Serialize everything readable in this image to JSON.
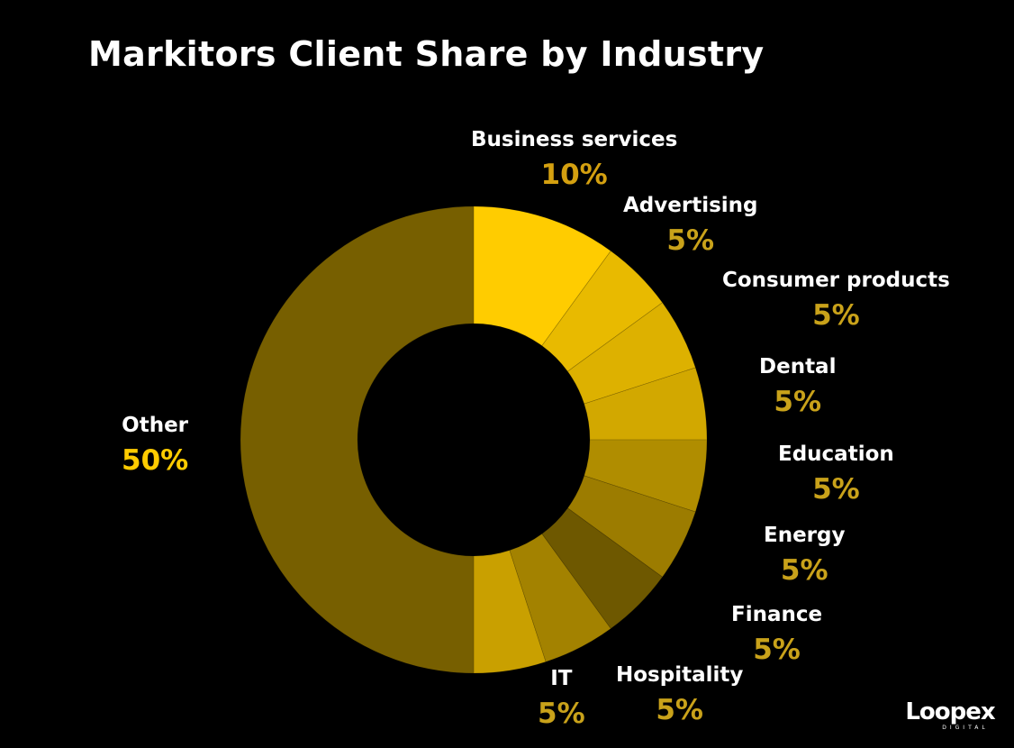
{
  "chart_data": {
    "type": "pie",
    "title": "Markitors Client Share by Industry",
    "donut": true,
    "legend": "none",
    "slices": [
      {
        "label": "Business services",
        "value": 10,
        "value_label": "10%",
        "color": "#FFCC00",
        "label_color": "#D4A010"
      },
      {
        "label": "Advertising",
        "value": 5,
        "value_label": "5%",
        "color": "#E8BA00",
        "label_color": "#C9A21A"
      },
      {
        "label": "Consumer products",
        "value": 5,
        "value_label": "5%",
        "color": "#DDB100",
        "label_color": "#C9A21A"
      },
      {
        "label": "Dental",
        "value": 5,
        "value_label": "5%",
        "color": "#D2A800",
        "label_color": "#C9A21A"
      },
      {
        "label": "Education",
        "value": 5,
        "value_label": "5%",
        "color": "#B08D00",
        "label_color": "#C9A21A"
      },
      {
        "label": "Energy",
        "value": 5,
        "value_label": "5%",
        "color": "#9C7C00",
        "label_color": "#C9A21A"
      },
      {
        "label": "Finance",
        "value": 5,
        "value_label": "5%",
        "color": "#6E5800",
        "label_color": "#C9A21A"
      },
      {
        "label": "Hospitality",
        "value": 5,
        "value_label": "5%",
        "color": "#A38200",
        "label_color": "#C9A21A"
      },
      {
        "label": "IT",
        "value": 5,
        "value_label": "5%",
        "color": "#C9A000",
        "label_color": "#C9A21A"
      },
      {
        "label": "Other",
        "value": 50,
        "value_label": "50%",
        "color": "#775F00",
        "label_color": "#FFCC00"
      }
    ]
  },
  "brand": {
    "name": "Loopex",
    "sub": "DIGITAL"
  }
}
